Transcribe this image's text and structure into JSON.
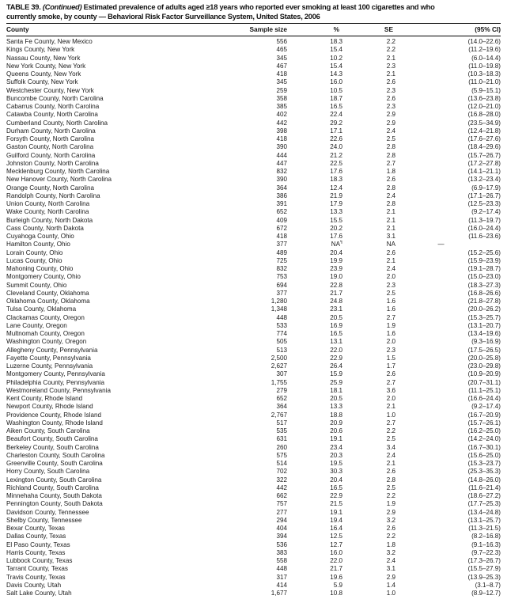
{
  "table": {
    "title": {
      "prefix": "TABLE 39.",
      "continued": "(Continued)",
      "line1_rest": "Estimated prevalence of adults aged ≥18 years who reported ever smoking at least 100 cigarettes and who",
      "line2": "currently smoke, by county — Behavioral Risk Factor Surveillance System, United States, 2006"
    },
    "columns": [
      "County",
      "Sample size",
      "%",
      "SE",
      "(95% CI)"
    ],
    "rows": [
      [
        "Santa Fe County, New Mexico",
        "556",
        "18.3",
        "2.2",
        "(14.0–22.6)"
      ],
      [
        "Kings County, New York",
        "465",
        "15.4",
        "2.2",
        "(11.2–19.6)"
      ],
      [
        "Nassau County, New York",
        "345",
        "10.2",
        "2.1",
        "(6.0–14.4)"
      ],
      [
        "New York County, New York",
        "467",
        "15.4",
        "2.3",
        "(11.0–19.8)"
      ],
      [
        "Queens County, New York",
        "418",
        "14.3",
        "2.1",
        "(10.3–18.3)"
      ],
      [
        "Suffolk County, New York",
        "345",
        "16.0",
        "2.6",
        "(11.0–21.0)"
      ],
      [
        "Westchester County, New York",
        "259",
        "10.5",
        "2.3",
        "(5.9–15.1)"
      ],
      [
        "Buncombe County, North Carolina",
        "358",
        "18.7",
        "2.6",
        "(13.6–23.8)"
      ],
      [
        "Cabarrus County, North Carolina",
        "385",
        "16.5",
        "2.3",
        "(12.0–21.0)"
      ],
      [
        "Catawba County, North Carolina",
        "402",
        "22.4",
        "2.9",
        "(16.8–28.0)"
      ],
      [
        "Cumberland County, North Carolina",
        "442",
        "29.2",
        "2.9",
        "(23.5–34.9)"
      ],
      [
        "Durham County, North Carolina",
        "398",
        "17.1",
        "2.4",
        "(12.4–21.8)"
      ],
      [
        "Forsyth County, North Carolina",
        "418",
        "22.6",
        "2.5",
        "(17.6–27.6)"
      ],
      [
        "Gaston County, North Carolina",
        "390",
        "24.0",
        "2.8",
        "(18.4–29.6)"
      ],
      [
        "Guilford County, North Carolina",
        "444",
        "21.2",
        "2.8",
        "(15.7–26.7)"
      ],
      [
        "Johnston County, North Carolina",
        "447",
        "22.5",
        "2.7",
        "(17.2–27.8)"
      ],
      [
        "Mecklenburg County, North Carolina",
        "832",
        "17.6",
        "1.8",
        "(14.1–21.1)"
      ],
      [
        "New Hanover County, North Carolina",
        "390",
        "18.3",
        "2.6",
        "(13.2–23.4)"
      ],
      [
        "Orange County, North Carolina",
        "364",
        "12.4",
        "2.8",
        "(6.9–17.9)"
      ],
      [
        "Randolph County, North Carolina",
        "386",
        "21.9",
        "2.4",
        "(17.1–26.7)"
      ],
      [
        "Union County, North Carolina",
        "391",
        "17.9",
        "2.8",
        "(12.5–23.3)"
      ],
      [
        "Wake County, North Carolina",
        "652",
        "13.3",
        "2.1",
        "(9.2–17.4)"
      ],
      [
        "Burleigh County, North Dakota",
        "409",
        "15.5",
        "2.1",
        "(11.3–19.7)"
      ],
      [
        "Cass County, North Dakota",
        "672",
        "20.2",
        "2.1",
        "(16.0–24.4)"
      ],
      [
        "Cuyahoga County, Ohio",
        "418",
        "17.6",
        "3.1",
        "(11.6–23.6)"
      ],
      [
        "Hamilton County, Ohio",
        "377",
        "NA¶",
        "NA",
        "—"
      ],
      [
        "Lorain County, Ohio",
        "489",
        "20.4",
        "2.6",
        "(15.2–25.6)"
      ],
      [
        "Lucas County, Ohio",
        "725",
        "19.9",
        "2.1",
        "(15.9–23.9)"
      ],
      [
        "Mahoning County, Ohio",
        "832",
        "23.9",
        "2.4",
        "(19.1–28.7)"
      ],
      [
        "Montgomery County, Ohio",
        "753",
        "19.0",
        "2.0",
        "(15.0–23.0)"
      ],
      [
        "Summit County, Ohio",
        "694",
        "22.8",
        "2.3",
        "(18.3–27.3)"
      ],
      [
        "Cleveland County, Oklahoma",
        "377",
        "21.7",
        "2.5",
        "(16.8–26.6)"
      ],
      [
        "Oklahoma County, Oklahoma",
        "1,280",
        "24.8",
        "1.6",
        "(21.8–27.8)"
      ],
      [
        "Tulsa County, Oklahoma",
        "1,348",
        "23.1",
        "1.6",
        "(20.0–26.2)"
      ],
      [
        "Clackamas County, Oregon",
        "448",
        "20.5",
        "2.7",
        "(15.3–25.7)"
      ],
      [
        "Lane County, Oregon",
        "533",
        "16.9",
        "1.9",
        "(13.1–20.7)"
      ],
      [
        "Multnomah County, Oregon",
        "774",
        "16.5",
        "1.6",
        "(13.4–19.6)"
      ],
      [
        "Washington County, Oregon",
        "505",
        "13.1",
        "2.0",
        "(9.3–16.9)"
      ],
      [
        "Allegheny County, Pennsylvania",
        "513",
        "22.0",
        "2.3",
        "(17.5–26.5)"
      ],
      [
        "Fayette County, Pennsylvania",
        "2,500",
        "22.9",
        "1.5",
        "(20.0–25.8)"
      ],
      [
        "Luzerne County, Pennsylvania",
        "2,627",
        "26.4",
        "1.7",
        "(23.0–29.8)"
      ],
      [
        "Montgomery County, Pennsylvania",
        "307",
        "15.9",
        "2.6",
        "(10.9–20.9)"
      ],
      [
        "Philadelphia County, Pennsylvania",
        "1,755",
        "25.9",
        "2.7",
        "(20.7–31.1)"
      ],
      [
        "Westmoreland County, Pennsylvania",
        "279",
        "18.1",
        "3.6",
        "(11.1–25.1)"
      ],
      [
        "Kent County, Rhode Island",
        "652",
        "20.5",
        "2.0",
        "(16.6–24.4)"
      ],
      [
        "Newport County, Rhode Island",
        "364",
        "13.3",
        "2.1",
        "(9.2–17.4)"
      ],
      [
        "Providence County, Rhode Island",
        "2,767",
        "18.8",
        "1.0",
        "(16.7–20.9)"
      ],
      [
        "Washington County, Rhode Island",
        "517",
        "20.9",
        "2.7",
        "(15.7–26.1)"
      ],
      [
        "Aiken County, South Carolina",
        "535",
        "20.6",
        "2.2",
        "(16.2–25.0)"
      ],
      [
        "Beaufort County, South Carolina",
        "631",
        "19.1",
        "2.5",
        "(14.2–24.0)"
      ],
      [
        "Berkeley County, South Carolina",
        "260",
        "23.4",
        "3.4",
        "(16.7–30.1)"
      ],
      [
        "Charleston County, South Carolina",
        "575",
        "20.3",
        "2.4",
        "(15.6–25.0)"
      ],
      [
        "Greenville County, South Carolina",
        "514",
        "19.5",
        "2.1",
        "(15.3–23.7)"
      ],
      [
        "Horry County, South Carolina",
        "702",
        "30.3",
        "2.6",
        "(25.3–35.3)"
      ],
      [
        "Lexington County, South Carolina",
        "322",
        "20.4",
        "2.8",
        "(14.8–26.0)"
      ],
      [
        "Richland County, South Carolina",
        "442",
        "16.5",
        "2.5",
        "(11.6–21.4)"
      ],
      [
        "Minnehaha County, South Dakota",
        "662",
        "22.9",
        "2.2",
        "(18.6–27.2)"
      ],
      [
        "Pennington County, South Dakota",
        "757",
        "21.5",
        "1.9",
        "(17.7–25.3)"
      ],
      [
        "Davidson County, Tennessee",
        "277",
        "19.1",
        "2.9",
        "(13.4–24.8)"
      ],
      [
        "Shelby County, Tennessee",
        "294",
        "19.4",
        "3.2",
        "(13.1–25.7)"
      ],
      [
        "Bexar County, Texas",
        "404",
        "16.4",
        "2.6",
        "(11.3–21.5)"
      ],
      [
        "Dallas County, Texas",
        "394",
        "12.5",
        "2.2",
        "(8.2–16.8)"
      ],
      [
        "El Paso County, Texas",
        "536",
        "12.7",
        "1.8",
        "(9.1–16.3)"
      ],
      [
        "Harris County, Texas",
        "383",
        "16.0",
        "3.2",
        "(9.7–22.3)"
      ],
      [
        "Lubbock County, Texas",
        "558",
        "22.0",
        "2.4",
        "(17.3–26.7)"
      ],
      [
        "Tarrant County, Texas",
        "448",
        "21.7",
        "3.1",
        "(15.5–27.9)"
      ],
      [
        "Travis County, Texas",
        "317",
        "19.6",
        "2.9",
        "(13.9–25.3)"
      ],
      [
        "Davis County, Utah",
        "414",
        "5.9",
        "1.4",
        "(3.1–8.7)"
      ],
      [
        "Salt Lake County, Utah",
        "1,677",
        "10.8",
        "1.0",
        "(8.9–12.7)"
      ]
    ]
  }
}
